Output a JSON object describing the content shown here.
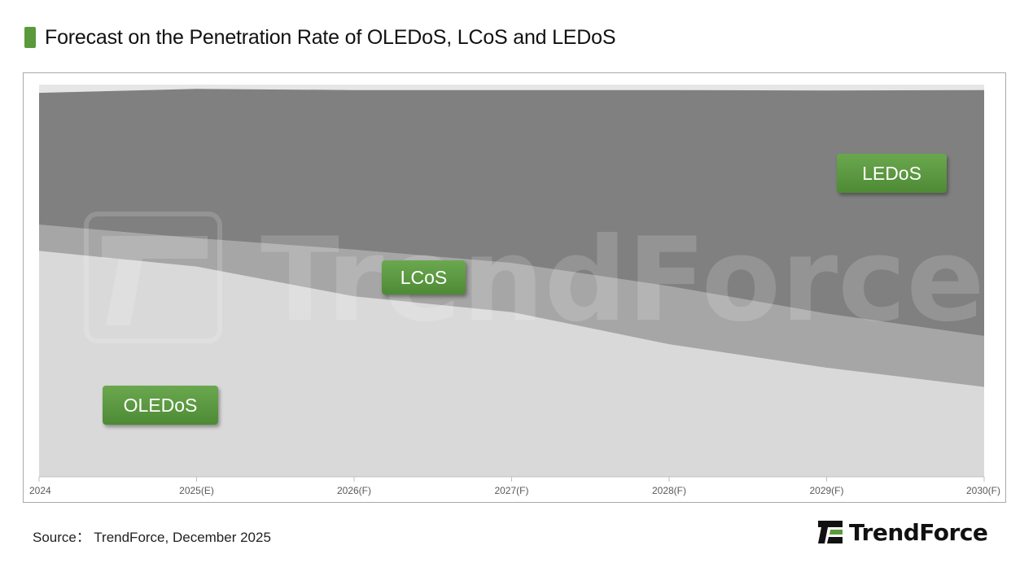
{
  "title": "Forecast on the Penetration Rate of OLEDoS, LCoS and LEDoS",
  "source": "Source： TrendForce, December 2025",
  "logo_text": "TrendForce",
  "watermark_text": "TrendForce",
  "colors": {
    "accent": "#5a9a3c",
    "oledos": "#d9d9d9",
    "lcos": "#a6a6a6",
    "ledos": "#808080",
    "top_band": "#e6e6e6"
  },
  "chart_data": {
    "type": "area",
    "stacked": true,
    "x": [
      "2024",
      "2025(E)",
      "2026(F)",
      "2027(F)",
      "2028(F)",
      "2029(F)",
      "2030(F)"
    ],
    "ylim": [
      0,
      100
    ],
    "series": [
      {
        "name": "OLEDoS",
        "values": [
          57.6,
          53.6,
          46.0,
          42.0,
          33.8,
          27.8,
          22.9
        ]
      },
      {
        "name": "LCoS",
        "values": [
          6.7,
          7.2,
          11.9,
          12.5,
          14.8,
          13.8,
          13.0
        ]
      },
      {
        "name": "LEDoS",
        "values": [
          33.6,
          38.1,
          40.7,
          44.1,
          50.0,
          56.9,
          62.7
        ]
      }
    ],
    "xlabel": "",
    "ylabel": "",
    "grid": false,
    "legend": "inline labels"
  }
}
